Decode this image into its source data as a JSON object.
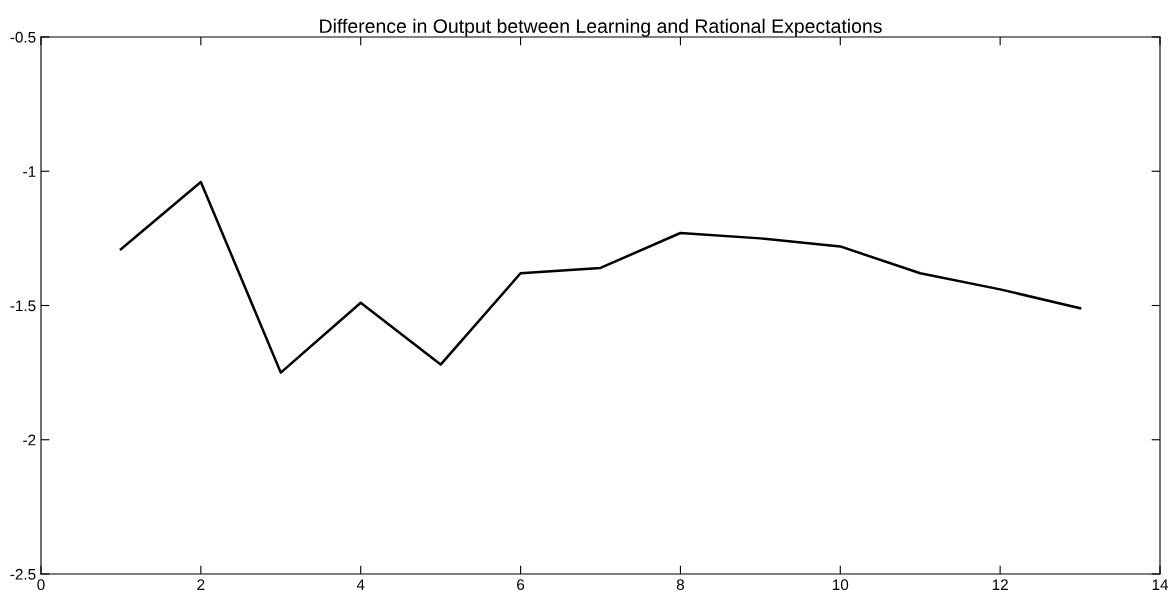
{
  "chart_data": {
    "type": "line",
    "title": "Difference in Output between Learning and Rational Expectations",
    "x": [
      1,
      2,
      3,
      4,
      5,
      6,
      7,
      8,
      9,
      10,
      11,
      12,
      13
    ],
    "series": [
      {
        "color": "#000000",
        "values": [
          -1.29,
          -1.04,
          -1.75,
          -1.49,
          -1.72,
          -1.38,
          -1.36,
          -1.23,
          -1.25,
          -1.28,
          -1.38,
          -1.44,
          -1.51
        ]
      }
    ],
    "xlim": [
      0,
      14
    ],
    "xticks": [
      0,
      2,
      4,
      6,
      8,
      10,
      12,
      14
    ],
    "ylim": [
      -2.5,
      -0.5
    ],
    "yticks": [
      {
        "value": -2.5,
        "label": "-2.5"
      },
      {
        "value": -2,
        "label": "-2"
      },
      {
        "value": -1.5,
        "label": "-1.5"
      },
      {
        "value": -1,
        "label": "-1"
      },
      {
        "value": -0.5,
        "label": "-0.5"
      }
    ],
    "grid": false,
    "legend": false,
    "marker": "none",
    "line_style": "solid"
  }
}
